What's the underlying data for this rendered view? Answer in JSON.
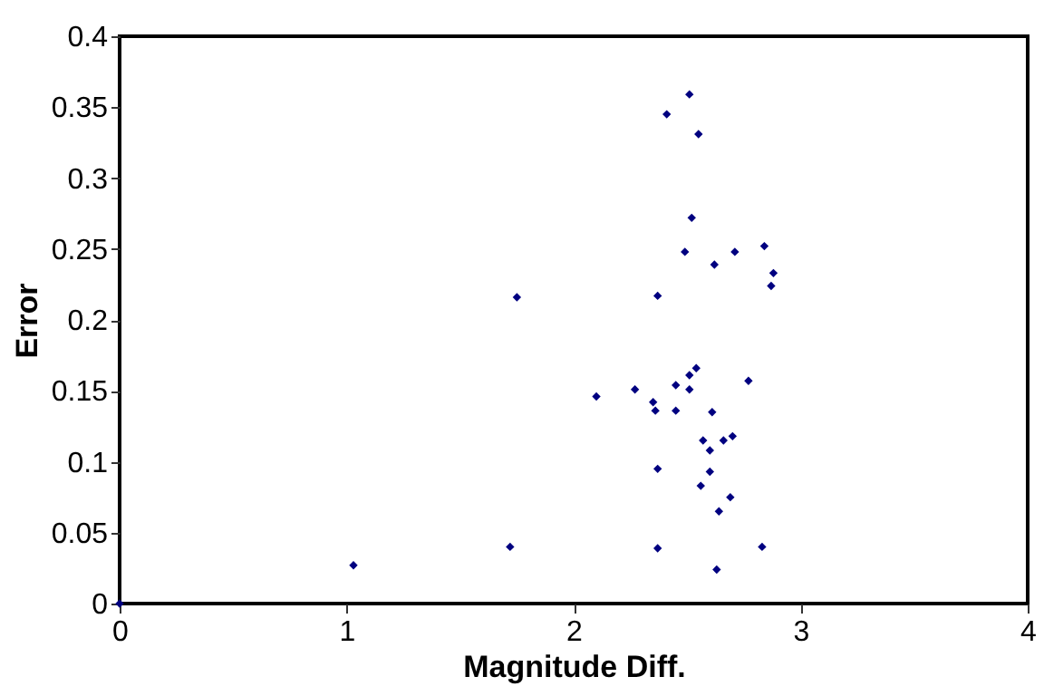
{
  "chart_data": {
    "type": "scatter",
    "xlabel": "Magnitude Diff.",
    "ylabel": "Error",
    "x": [
      2.51,
      2.41,
      2.55,
      2.52,
      2.49,
      2.62,
      2.71,
      2.84,
      2.88,
      2.87,
      1.75,
      2.37,
      2.54,
      2.51,
      2.77,
      2.45,
      2.27,
      2.51,
      2.1,
      2.35,
      2.36,
      2.45,
      2.61,
      2.57,
      2.7,
      2.66,
      2.6,
      2.37,
      2.6,
      2.56,
      2.69,
      2.64,
      1.72,
      2.37,
      2.83,
      2.63,
      1.03,
      0
    ],
    "series": [
      {
        "color": "#000080",
        "values": [
          0.359,
          0.345,
          0.331,
          0.272,
          0.248,
          0.239,
          0.248,
          0.252,
          0.233,
          0.224,
          0.216,
          0.217,
          0.166,
          0.161,
          0.157,
          0.154,
          0.151,
          0.151,
          0.146,
          0.142,
          0.136,
          0.136,
          0.135,
          0.115,
          0.118,
          0.115,
          0.108,
          0.095,
          0.093,
          0.083,
          0.075,
          0.065,
          0.04,
          0.039,
          0.04,
          0.024,
          0.027,
          0
        ]
      }
    ],
    "xlim": [
      0,
      4
    ],
    "xticks": [
      0,
      1,
      2,
      3,
      4
    ],
    "ylim": [
      0,
      0.4
    ],
    "yticks": [
      0,
      0.05,
      0.1,
      0.15,
      0.2,
      0.25,
      0.3,
      0.35,
      0.4
    ],
    "marker": "diamond",
    "grid": false,
    "legend": false
  }
}
